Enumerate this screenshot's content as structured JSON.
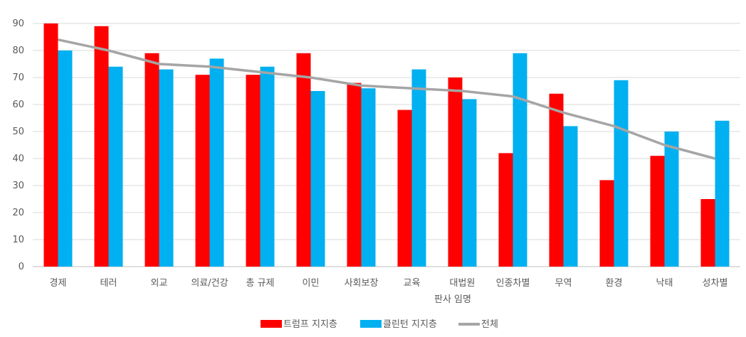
{
  "chart_data": {
    "type": "bar",
    "title": "",
    "xlabel": "판사 임명",
    "ylabel": "",
    "ylim": [
      0,
      90
    ],
    "yticks": [
      0,
      10,
      20,
      30,
      40,
      50,
      60,
      70,
      80,
      90
    ],
    "grid": true,
    "legend_position": "bottom",
    "categories": [
      "경제",
      "테러",
      "외교",
      "의료/건강",
      "총 규제",
      "이민",
      "사회보장",
      "교육",
      "대법원",
      "인종차별",
      "무역",
      "환경",
      "낙태",
      "성차별"
    ],
    "series": [
      {
        "name": "트럼프 지지층",
        "type": "bar",
        "color": "#ff0000",
        "values": [
          90,
          89,
          79,
          71,
          71,
          79,
          68,
          58,
          70,
          42,
          64,
          32,
          41,
          25
        ]
      },
      {
        "name": "클린턴 지지층",
        "type": "bar",
        "color": "#00b0f0",
        "values": [
          80,
          74,
          73,
          77,
          74,
          65,
          66,
          73,
          62,
          79,
          52,
          69,
          50,
          54
        ]
      },
      {
        "name": "전체",
        "type": "line",
        "color": "#a5a5a5",
        "values": [
          84,
          80,
          75,
          74,
          72,
          70,
          67,
          66,
          65,
          63,
          57,
          52,
          45,
          40
        ]
      }
    ]
  }
}
